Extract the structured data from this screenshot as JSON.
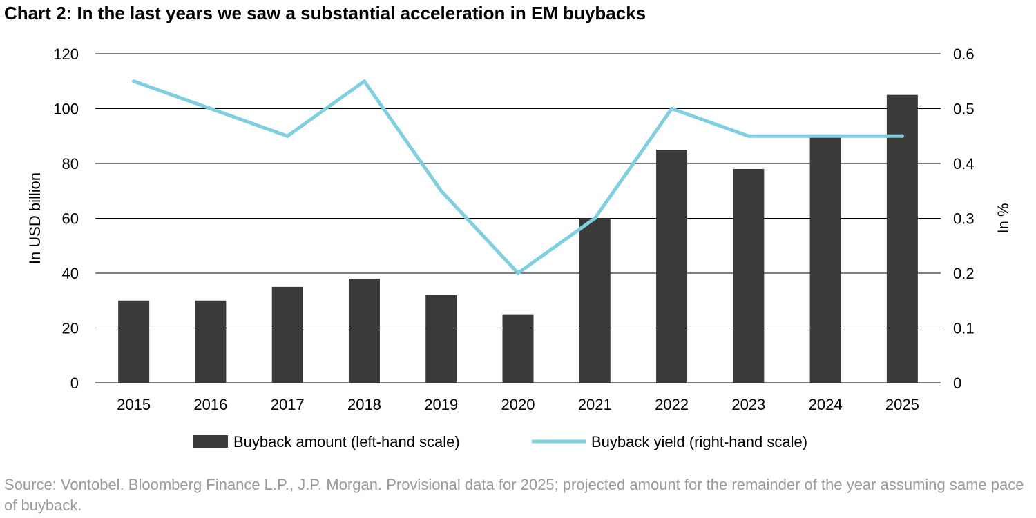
{
  "chart_data": {
    "type": "bar",
    "title": "Chart 2: In the last years we saw a substantial acceleration in EM buybacks",
    "categories": [
      "2015",
      "2016",
      "2017",
      "2018",
      "2019",
      "2020",
      "2021",
      "2022",
      "2023",
      "2024",
      "2025"
    ],
    "series": [
      {
        "name": "Buyback amount (left-hand scale)",
        "type": "bar",
        "axis": "left",
        "values": [
          30,
          30,
          35,
          38,
          32,
          25,
          60,
          85,
          78,
          90,
          105
        ]
      },
      {
        "name": "Buyback yield (right-hand scale)",
        "type": "line",
        "axis": "right",
        "values": [
          0.55,
          0.5,
          0.45,
          0.55,
          0.35,
          0.2,
          0.3,
          0.5,
          0.45,
          0.45,
          0.45
        ]
      }
    ],
    "ylabel": "In USD billion",
    "ylim": [
      0,
      120
    ],
    "yticks": [
      "0",
      "20",
      "40",
      "60",
      "80",
      "100",
      "120"
    ],
    "y2label": "In %",
    "y2lim": [
      0,
      0.6
    ],
    "y2ticks": [
      "0",
      "0.1",
      "0.2",
      "0.3",
      "0.4",
      "0.5",
      "0.6"
    ],
    "grid": true,
    "legend_position": "bottom",
    "colors": {
      "bar": "#3a3b39",
      "line": "#7ecfe2",
      "grid": "#000000"
    }
  },
  "source": "Source: Vontobel. Bloomberg Finance L.P., J.P. Morgan. Provisional data for 2025; projected amount for the remainder of the year assuming same pace of buyback."
}
